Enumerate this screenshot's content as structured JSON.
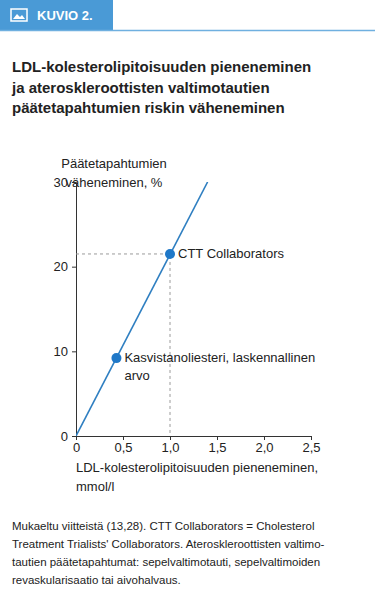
{
  "chart_data": {
    "type": "line",
    "figure_label": "KUVIO 2.",
    "title": [
      "LDL-kolesterolipitoisuuden pieneneminen",
      "ja ateroskleroottisten valtimotautien",
      "päätetapahtumien riskin väheneminen"
    ],
    "ylabel": [
      "Päätetapahtumien",
      "väheneminen, %"
    ],
    "xlabel": [
      "LDL-kolesterolipitoisuuden pieneneminen,",
      "mmol/l"
    ],
    "note": [
      "Mukaeltu viitteistä (13,28). CTT Collaborators = Cholesterol",
      "Treatment Trialists' Collaborators. Ateroskleroottisten valtimo-",
      "tautien päätetapahtumat: sepelvaltimotauti, sepelvaltimoiden",
      "revaskularisaatio tai aivohalvaus."
    ],
    "xlim": [
      0,
      2.5
    ],
    "xticks": [
      0,
      {
        "value": 0.5,
        "label": "0,5"
      },
      {
        "value": 1.0,
        "label": "1,0"
      },
      {
        "value": 1.5,
        "label": "1,5"
      },
      {
        "value": 2.0,
        "label": "2,0"
      },
      {
        "value": 2.5,
        "label": "2,5"
      }
    ],
    "ylim": [
      0,
      30
    ],
    "yticks": [
      0,
      10,
      20,
      30
    ],
    "grid": false,
    "series": [
      {
        "type": "line",
        "color": "#9a9a9a",
        "line_style": "dashed",
        "x": [
          0,
          1.0,
          1.0
        ],
        "values": [
          21.5,
          21.5,
          0
        ]
      },
      {
        "type": "line",
        "color": "#2f7fc1",
        "line_style": "solid",
        "x": [
          0,
          1.4
        ],
        "values": [
          0,
          30
        ]
      },
      {
        "type": "scatter",
        "color": "#1f78c8",
        "marker": "circle",
        "x": [
          1.0,
          0.43
        ],
        "values": [
          21.5,
          9.2
        ],
        "labels": [
          [
            "CTT Collaborators"
          ],
          [
            "Kasvistanoliesteri, laskennallinen",
            "arvo"
          ]
        ]
      }
    ]
  }
}
